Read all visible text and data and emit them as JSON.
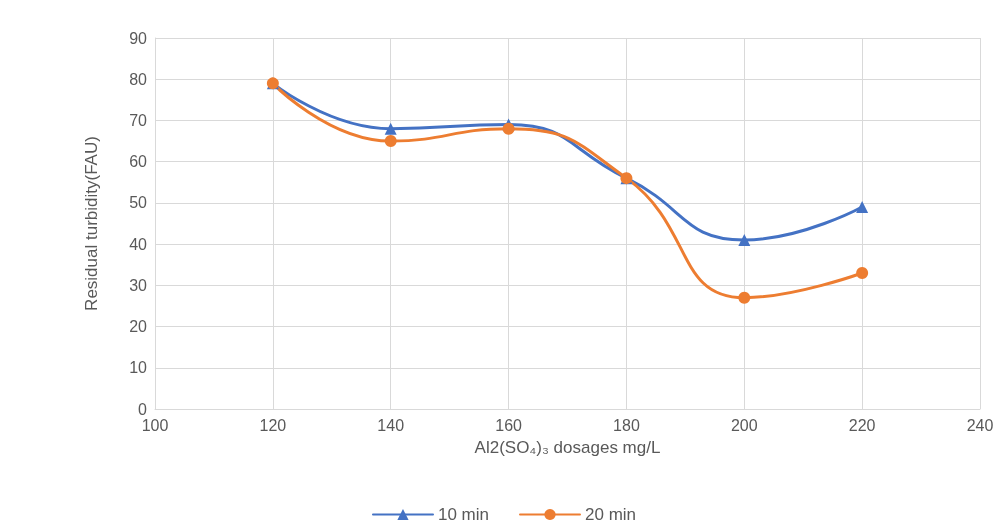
{
  "chart_data": {
    "type": "line",
    "xlabel": "Al2(SO₄)₃ dosages mg/L",
    "ylabel": "Residual turbidity(FAU)",
    "x": [
      120,
      140,
      160,
      180,
      200,
      220
    ],
    "series": [
      {
        "name": "10 min",
        "color": "#4472c4",
        "marker": "triangle",
        "values": [
          79,
          68,
          69,
          56,
          41,
          49
        ]
      },
      {
        "name": "20 min",
        "color": "#ed7d31",
        "marker": "circle",
        "values": [
          79,
          65,
          68,
          56,
          27,
          33
        ]
      }
    ],
    "xlim": [
      100,
      240
    ],
    "xticks": [
      100,
      120,
      140,
      160,
      180,
      200,
      220,
      240
    ],
    "ylim": [
      0,
      90
    ],
    "yticks": [
      0,
      10,
      20,
      30,
      40,
      50,
      60,
      70,
      80,
      90
    ],
    "grid": true,
    "legend": "bottom",
    "line_style": "solid"
  }
}
